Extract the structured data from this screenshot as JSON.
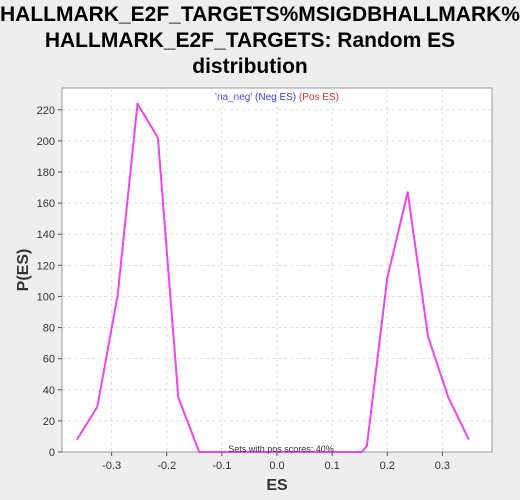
{
  "chart_data": {
    "type": "line",
    "title": [
      "HALLMARK_E2F_TARGETS%MSIGDBHALLMARK%",
      "HALLMARK_E2F_TARGETS: Random ES",
      "distribution"
    ],
    "xlabel": "ES",
    "ylabel": "P(ES)",
    "xlim": [
      -0.39,
      0.39
    ],
    "ylim": [
      0,
      234
    ],
    "xticks": [
      -0.3,
      -0.2,
      -0.1,
      0.0,
      0.1,
      0.2,
      0.3
    ],
    "xtick_labels": [
      "-0.3",
      "-0.2",
      "-0.1",
      "0.0",
      "0.1",
      "0.2",
      "0.3"
    ],
    "yticks": [
      0,
      20,
      40,
      60,
      80,
      100,
      120,
      140,
      160,
      180,
      200,
      220
    ],
    "ytick_labels": [
      "0",
      "20",
      "40",
      "60",
      "80",
      "100",
      "120",
      "140",
      "160",
      "180",
      "200",
      "220"
    ],
    "grid": true,
    "legend": {
      "placement": "top-center",
      "items": [
        {
          "text": "'na_neg'",
          "color": "#6a3fd6"
        },
        {
          "text": "(Neg ES)",
          "color": "#3a3ad6"
        },
        {
          "text": "(Pos ES)",
          "color": "#e03030"
        }
      ]
    },
    "annotation": "Sets with pos scores: 40%",
    "series": [
      {
        "color": "#ee44ee",
        "x": [
          -0.363,
          -0.326,
          -0.289,
          -0.253,
          -0.216,
          -0.179,
          -0.141,
          -0.104,
          -0.068,
          -0.031,
          0.006,
          0.043,
          0.08,
          0.117,
          0.154,
          0.163,
          0.2,
          0.237,
          0.274,
          0.311,
          0.348
        ],
        "y": [
          8,
          29,
          101,
          224,
          202,
          35,
          0,
          0,
          0,
          0,
          0,
          0,
          0,
          0,
          0,
          4,
          112,
          167,
          74,
          35,
          8
        ]
      }
    ]
  }
}
